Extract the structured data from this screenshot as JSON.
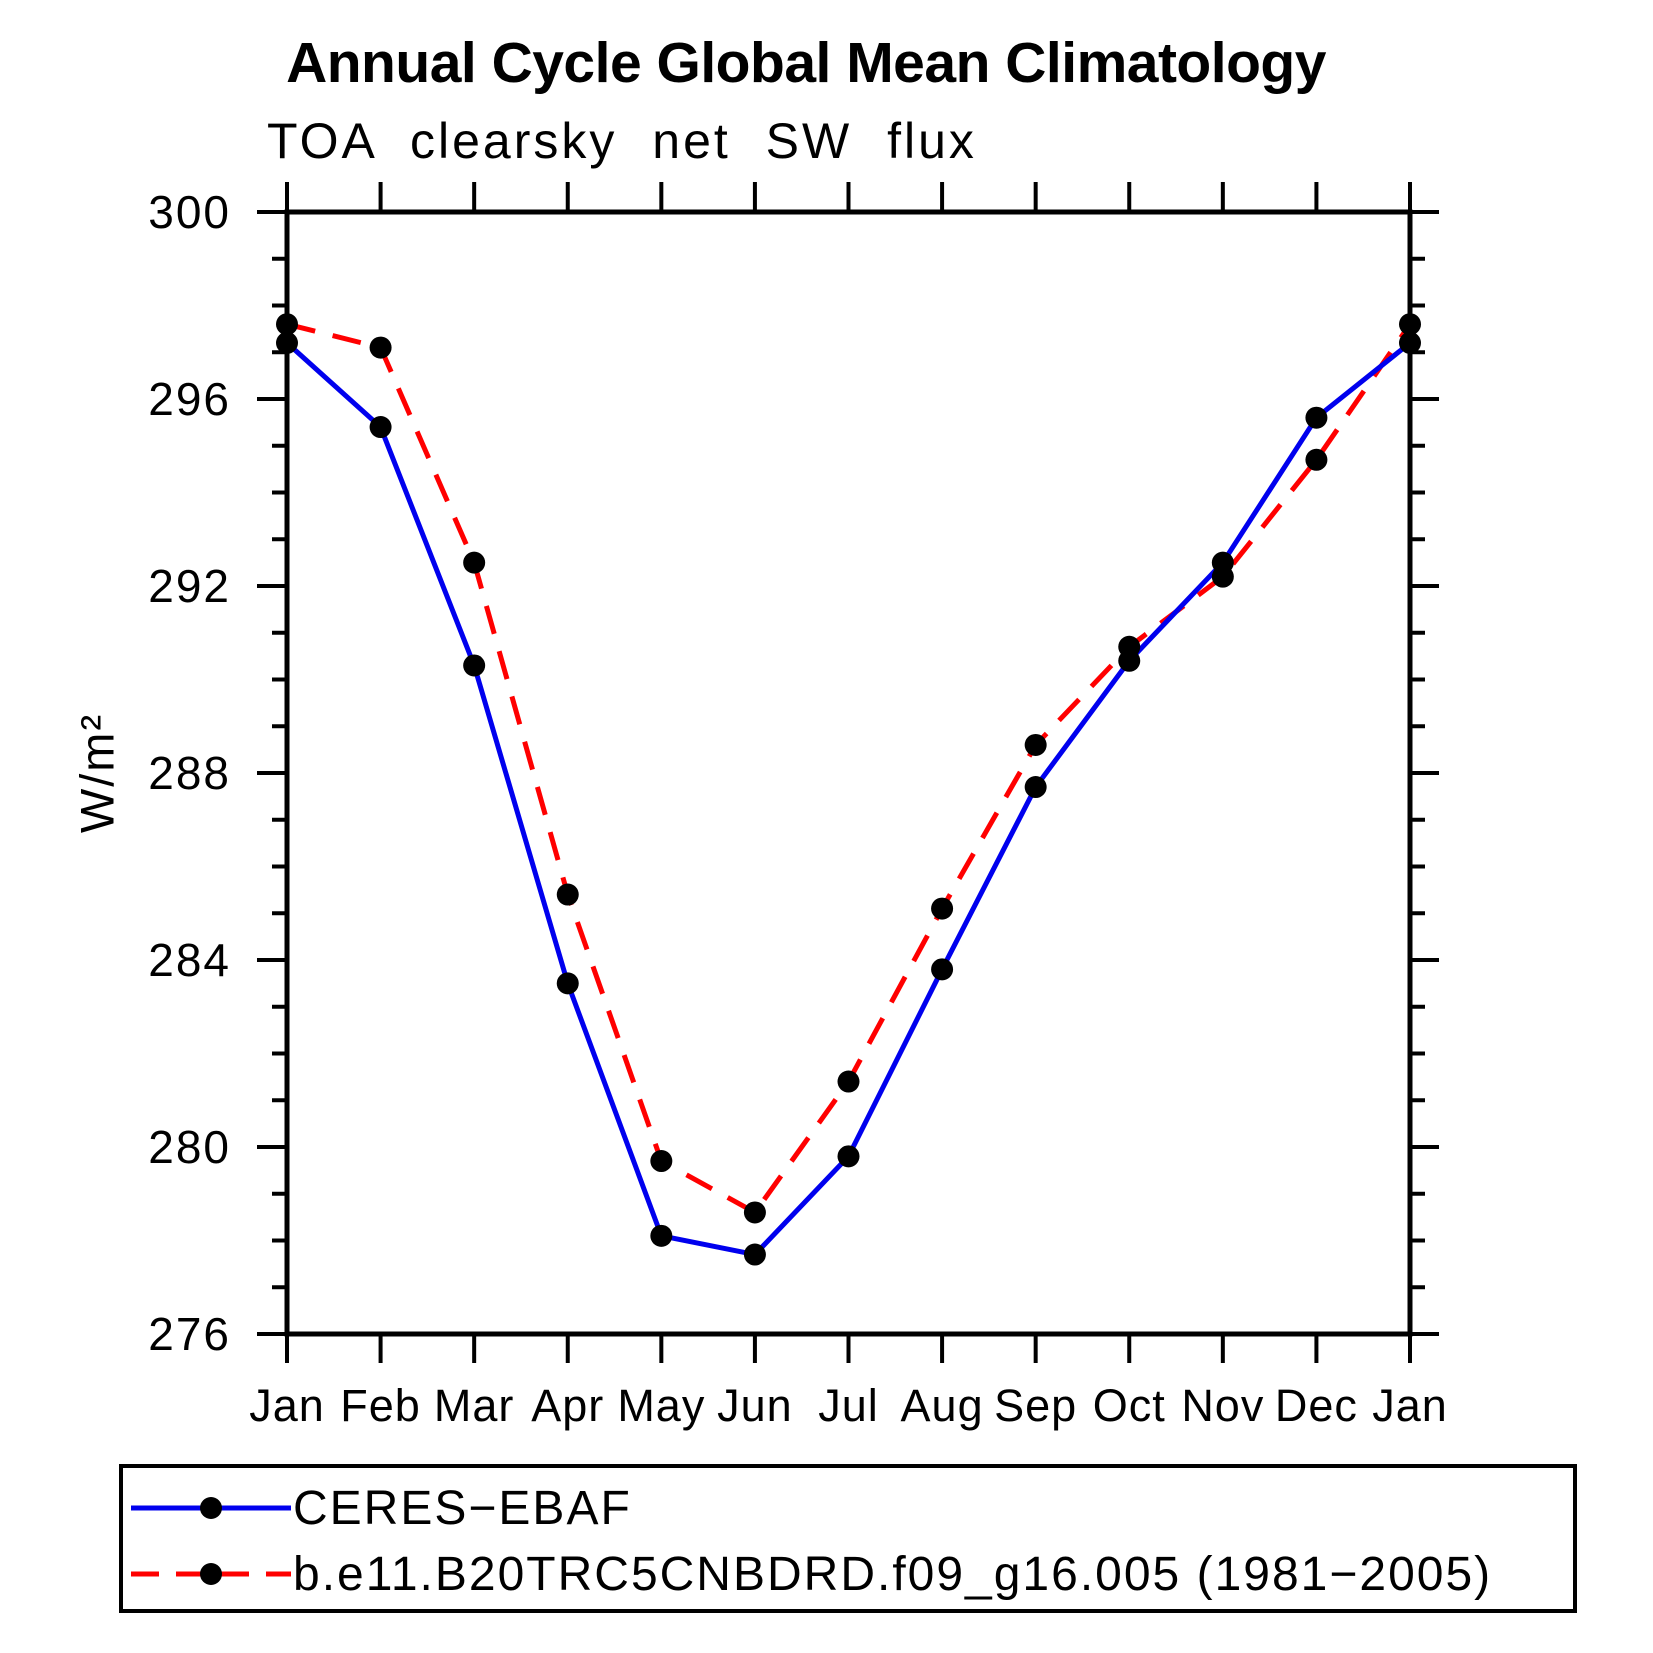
{
  "chart_data": {
    "type": "line",
    "title": "Annual Cycle Global Mean Climatology",
    "subtitle": "TOA clearsky net SW flux",
    "ylabel": "W/m²",
    "xlabel": "",
    "categories": [
      "Jan",
      "Feb",
      "Mar",
      "Apr",
      "May",
      "Jun",
      "Jul",
      "Aug",
      "Sep",
      "Oct",
      "Nov",
      "Dec",
      "Jan"
    ],
    "ylim": [
      276,
      300
    ],
    "ytick_major_step": 4,
    "ytick_minor_step": 1,
    "ytick_labels": [
      "276",
      "280",
      "284",
      "288",
      "292",
      "296",
      "300"
    ],
    "grid": false,
    "legend_position": "bottom-left-box",
    "axis_color": "#000000",
    "marker_color": "#000000",
    "series": [
      {
        "name": "CERES−EBAF",
        "color": "#0000ee",
        "line_style": "solid",
        "values": [
          297.2,
          295.4,
          290.3,
          283.5,
          278.1,
          277.7,
          279.8,
          283.8,
          287.7,
          290.4,
          292.5,
          295.6,
          297.2
        ]
      },
      {
        "name": "b.e11.B20TRC5CNBDRD.f09_g16.005 (1981−2005)",
        "color": "#ff0000",
        "line_style": "dashed",
        "values": [
          297.6,
          297.1,
          292.5,
          285.4,
          279.7,
          278.6,
          281.4,
          285.1,
          288.6,
          290.7,
          292.2,
          294.7,
          297.6
        ]
      }
    ]
  }
}
